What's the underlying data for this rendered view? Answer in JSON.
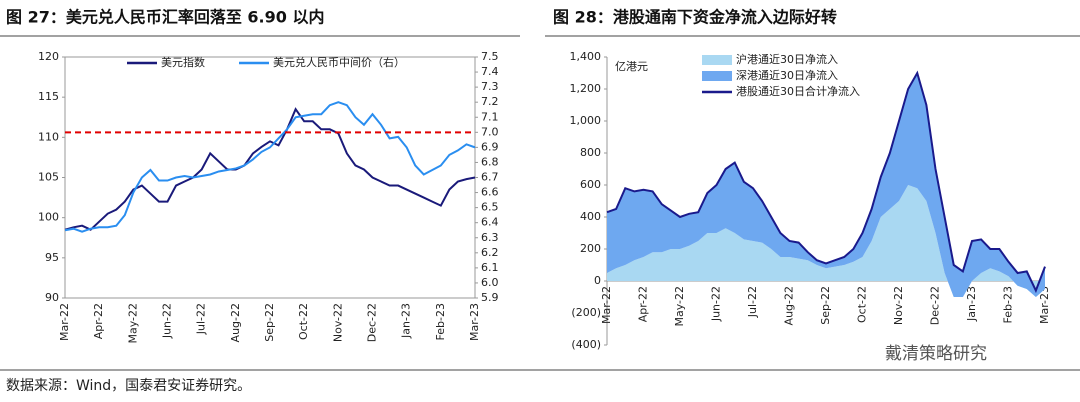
{
  "chart_data": [
    {
      "type": "line",
      "title": "图 27：美元兑人民币汇率回落至 6.90 以内",
      "categories": [
        "Mar-22",
        null,
        null,
        null,
        "Apr-22",
        null,
        null,
        null,
        "May-22",
        null,
        null,
        null,
        "Jun-22",
        null,
        null,
        null,
        "Jul-22",
        null,
        null,
        null,
        "Aug-22",
        null,
        null,
        null,
        "Sep-22",
        null,
        null,
        null,
        "Oct-22",
        null,
        null,
        null,
        "Nov-22",
        null,
        null,
        null,
        "Dec-22",
        null,
        null,
        null,
        "Jan-23",
        null,
        null,
        null,
        "Feb-23",
        null,
        null,
        null,
        "Mar-23"
      ],
      "series": [
        {
          "name": "美元指数",
          "color": "#1a1a7a",
          "values": [
            98.5,
            98.8,
            99.0,
            98.5,
            99.5,
            100.5,
            101,
            102,
            103.5,
            104,
            103,
            102,
            102,
            104,
            104.5,
            105,
            106,
            108,
            107,
            106,
            106,
            106.5,
            108,
            108.8,
            109.5,
            109,
            111,
            113.5,
            112,
            112,
            111,
            111,
            110.5,
            108,
            106.5,
            106,
            105,
            104.5,
            104,
            104,
            103.5,
            103,
            102.5,
            102,
            101.5,
            103.5,
            104.5,
            104.8,
            105
          ]
        },
        {
          "name": "美元兑人民币中间价（右）",
          "color": "#2a8ef0",
          "axis": "y2",
          "values": [
            6.35,
            6.36,
            6.34,
            6.36,
            6.37,
            6.37,
            6.38,
            6.45,
            6.6,
            6.7,
            6.75,
            6.68,
            6.68,
            6.7,
            6.71,
            6.7,
            6.71,
            6.72,
            6.74,
            6.75,
            6.76,
            6.78,
            6.82,
            6.87,
            6.9,
            6.96,
            7.02,
            7.1,
            7.11,
            7.12,
            7.12,
            7.18,
            7.2,
            7.18,
            7.1,
            7.05,
            7.12,
            7.05,
            6.96,
            6.97,
            6.9,
            6.78,
            6.72,
            6.75,
            6.78,
            6.85,
            6.88,
            6.92,
            6.9
          ]
        }
      ],
      "ylim": [
        90,
        120
      ],
      "yticks": [
        90,
        95,
        100,
        105,
        110,
        115,
        120
      ],
      "y2lim": [
        5.9,
        7.5
      ],
      "y2ticks": [
        5.9,
        {
          "value": 6,
          "label": "6.0"
        },
        6.1,
        6.2,
        6.3,
        6.4,
        6.5,
        6.6,
        6.7,
        6.8,
        6.9,
        {
          "value": 7,
          "label": "7.0"
        },
        7.1,
        7.2,
        7.3,
        7.4,
        7.5
      ],
      "reference_line": {
        "value": 7,
        "axis": "y2",
        "color": "#e00000"
      },
      "legend": "upper center",
      "frame": true
    },
    {
      "type": "area",
      "title": "图 28：港股通南下资金净流入边际好转",
      "ylabel": "亿港元",
      "categories": [
        "Mar-22",
        null,
        null,
        null,
        "Apr-22",
        null,
        null,
        null,
        "May-22",
        null,
        null,
        null,
        "Jun-22",
        null,
        null,
        null,
        "Jul-22",
        null,
        null,
        null,
        "Aug-22",
        null,
        null,
        null,
        "Sep-22",
        null,
        null,
        null,
        "Oct-22",
        null,
        null,
        null,
        "Nov-22",
        null,
        null,
        null,
        "Dec-22",
        null,
        null,
        null,
        "Jan-23",
        null,
        null,
        null,
        "Feb-23",
        null,
        null,
        null,
        "Mar-23"
      ],
      "series": [
        {
          "name": "沪港通近30日净流入",
          "color": "#a9d8f2",
          "kind": "area",
          "values": [
            50,
            80,
            100,
            130,
            150,
            180,
            180,
            200,
            200,
            220,
            250,
            300,
            300,
            330,
            300,
            260,
            250,
            240,
            200,
            150,
            150,
            140,
            130,
            100,
            80,
            90,
            100,
            120,
            150,
            250,
            400,
            450,
            500,
            600,
            580,
            500,
            300,
            50,
            -100,
            -100,
            0,
            50,
            80,
            60,
            30,
            -30,
            -50,
            -100,
            -50
          ]
        },
        {
          "name": "深港通近30日净流入",
          "color": "#6ea8f0",
          "kind": "area",
          "values": [
            380,
            370,
            480,
            430,
            420,
            380,
            300,
            240,
            200,
            200,
            180,
            250,
            300,
            370,
            440,
            360,
            330,
            260,
            200,
            150,
            100,
            100,
            50,
            30,
            30,
            40,
            50,
            80,
            150,
            200,
            250,
            350,
            500,
            600,
            720,
            600,
            400,
            350,
            200,
            160,
            250,
            210,
            120,
            140,
            90,
            80,
            110,
            40,
            140
          ]
        },
        {
          "name": "港股通近30日合计净流入",
          "color": "#1a1a8c",
          "kind": "line",
          "values": [
            430,
            450,
            580,
            560,
            570,
            560,
            480,
            440,
            400,
            420,
            430,
            550,
            600,
            700,
            740,
            620,
            580,
            500,
            400,
            300,
            250,
            240,
            180,
            130,
            110,
            130,
            150,
            200,
            300,
            450,
            650,
            800,
            1000,
            1200,
            1300,
            1100,
            700,
            400,
            100,
            60,
            250,
            260,
            200,
            200,
            120,
            50,
            60,
            -60,
            90
          ]
        }
      ],
      "stacked": true,
      "ylim": [
        -400,
        1400
      ],
      "yticks": [
        {
          "value": -400,
          "label": "(400)"
        },
        {
          "value": -200,
          "label": "(200)"
        },
        0,
        200,
        400,
        600,
        800,
        {
          "value": 1000,
          "label": "1,000"
        },
        {
          "value": 1200,
          "label": "1,200"
        },
        {
          "value": 1400,
          "label": "1,400"
        }
      ],
      "legend": "upper left",
      "frame": false
    }
  ],
  "source": "数据来源：Wind，国泰君安证券研究。",
  "watermark": "戴清策略研究"
}
